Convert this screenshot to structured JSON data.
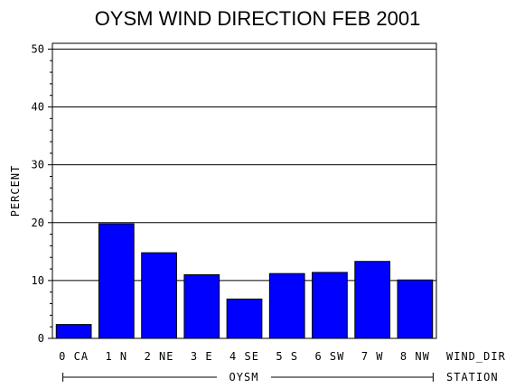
{
  "chart_data": {
    "type": "bar",
    "title": "OYSM WIND DIRECTION FEB 2001",
    "ylabel": "PERCENT",
    "xlabel": "WIND_DIR",
    "group_axis_label": "STATION",
    "group_label": "OYSM",
    "categories": [
      "0 CA",
      "1 N",
      "2 NE",
      "3 E",
      "4 SE",
      "5 S",
      "6 SW",
      "7 W",
      "8 NW"
    ],
    "values": [
      2.4,
      19.8,
      14.8,
      11.0,
      6.8,
      11.2,
      11.4,
      13.3,
      10.1
    ],
    "ylim": [
      0,
      51
    ],
    "yticks": [
      0,
      10,
      20,
      30,
      40,
      50
    ],
    "grid": true,
    "bar_color": "#0000ff"
  }
}
